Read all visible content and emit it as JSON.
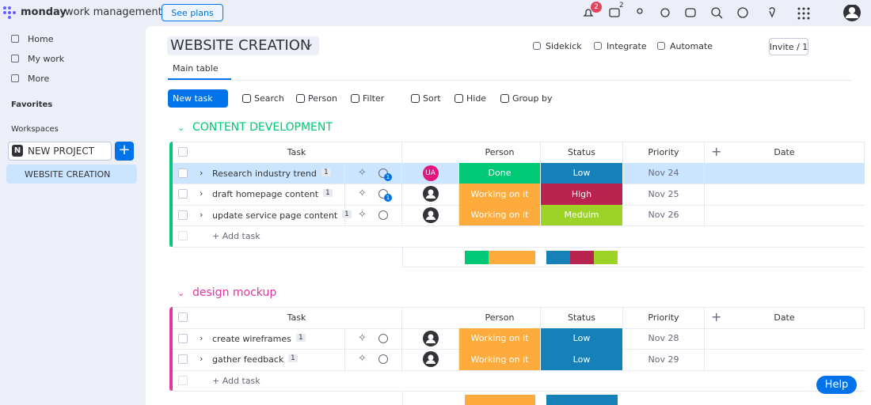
{
  "topbar": {
    "brand": "monday",
    "product": "work management",
    "see_plans": "See plans",
    "notifications": "2",
    "inbox": "2"
  },
  "sidebar": {
    "home": "Home",
    "my_work": "My work",
    "more": "More",
    "favorites": "Favorites",
    "workspaces": "Workspaces",
    "workspace": {
      "initial": "N",
      "name": "NEW PROJECT"
    },
    "boards": [
      "WEBSITE CREATION"
    ]
  },
  "board": {
    "title": "WEBSITE CREATION",
    "actions": [
      "Sidekick",
      "Integrate",
      "Automate"
    ],
    "invite": "Invite / 1",
    "tabs": [
      "Main table"
    ],
    "new_task": "New task",
    "toolbar": [
      "Search",
      "Person",
      "Filter",
      "Sort",
      "Hide",
      "Group by"
    ]
  },
  "columns": [
    "Task",
    "Person",
    "Status",
    "Priority",
    "Date"
  ],
  "groups": [
    {
      "name": "CONTENT DEVELOPMENT",
      "color": "#00c875",
      "add_task": "+ Add task",
      "rows": [
        {
          "task": "Research industry trend",
          "subitems": "1",
          "updates": "1",
          "person": "UA",
          "status": {
            "text": "Done",
            "color": "#00c875"
          },
          "priority": {
            "text": "Low",
            "color": "#1581b8"
          },
          "date": "Nov 24"
        },
        {
          "task": "draft homepage content",
          "subitems": "1",
          "updates": "1",
          "status": {
            "text": "Working on it",
            "color": "#fdab3d"
          },
          "priority": {
            "text": "High",
            "color": "#b8234f"
          },
          "date": "Nov 25"
        },
        {
          "task": "update service page content",
          "subitems": "1",
          "status": {
            "text": "Working on it",
            "color": "#fdab3d"
          },
          "priority": {
            "text": "Meduim",
            "color": "#9cd326"
          },
          "date": "Nov 26"
        }
      ]
    },
    {
      "name": "design mockup",
      "color": "#e2359f",
      "add_task": "+ Add task",
      "rows": [
        {
          "task": "create wireframes",
          "subitems": "1",
          "status": {
            "text": "Working on it",
            "color": "#fdab3d"
          },
          "priority": {
            "text": "Low",
            "color": "#1581b8"
          },
          "date": "Nov 28"
        },
        {
          "task": "gather feedback",
          "subitems": "1",
          "status": {
            "text": "Working on it",
            "color": "#fdab3d"
          },
          "priority": {
            "text": "Low",
            "color": "#1581b8"
          },
          "date": "Nov 29"
        }
      ]
    }
  ],
  "help": "Help"
}
